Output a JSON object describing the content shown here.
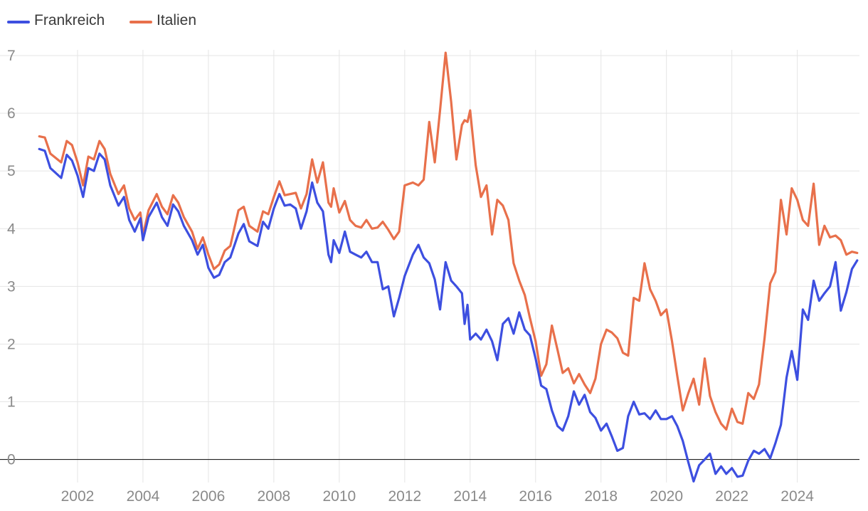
{
  "chart_data": {
    "type": "line",
    "title": "",
    "xlabel": "",
    "ylabel": "",
    "xlim": [
      2000.5,
      2025.9
    ],
    "ylim": [
      -0.4,
      7.1
    ],
    "grid": true,
    "legend_position": "top-left",
    "x_ticks": [
      2002,
      2004,
      2006,
      2008,
      2010,
      2012,
      2014,
      2016,
      2018,
      2020,
      2022,
      2024
    ],
    "x_tick_labels": [
      "2002",
      "2004",
      "2006",
      "2008",
      "2010",
      "2012",
      "2014",
      "2016",
      "2018",
      "2020",
      "2022",
      "2024"
    ],
    "y_ticks": [
      0,
      1,
      2,
      3,
      4,
      5,
      6,
      7
    ],
    "y_tick_labels": [
      "0",
      "1",
      "2",
      "3",
      "4",
      "5",
      "6",
      "7"
    ],
    "series": [
      {
        "name": "Frankreich",
        "color": "#3d4fe0",
        "points": [
          [
            2000.83,
            5.38
          ],
          [
            2001.0,
            5.35
          ],
          [
            2001.17,
            5.05
          ],
          [
            2001.5,
            4.88
          ],
          [
            2001.67,
            5.28
          ],
          [
            2001.83,
            5.18
          ],
          [
            2002.0,
            4.92
          ],
          [
            2002.17,
            4.55
          ],
          [
            2002.33,
            5.05
          ],
          [
            2002.5,
            5.0
          ],
          [
            2002.67,
            5.3
          ],
          [
            2002.83,
            5.2
          ],
          [
            2003.0,
            4.75
          ],
          [
            2003.25,
            4.4
          ],
          [
            2003.42,
            4.55
          ],
          [
            2003.58,
            4.15
          ],
          [
            2003.75,
            3.95
          ],
          [
            2003.92,
            4.18
          ],
          [
            2004.0,
            3.8
          ],
          [
            2004.17,
            4.2
          ],
          [
            2004.42,
            4.45
          ],
          [
            2004.58,
            4.2
          ],
          [
            2004.75,
            4.05
          ],
          [
            2004.92,
            4.42
          ],
          [
            2005.08,
            4.3
          ],
          [
            2005.25,
            4.05
          ],
          [
            2005.5,
            3.8
          ],
          [
            2005.67,
            3.55
          ],
          [
            2005.83,
            3.72
          ],
          [
            2006.0,
            3.32
          ],
          [
            2006.17,
            3.15
          ],
          [
            2006.33,
            3.2
          ],
          [
            2006.5,
            3.42
          ],
          [
            2006.67,
            3.5
          ],
          [
            2006.92,
            3.92
          ],
          [
            2007.08,
            4.08
          ],
          [
            2007.25,
            3.78
          ],
          [
            2007.5,
            3.7
          ],
          [
            2007.67,
            4.12
          ],
          [
            2007.83,
            4.0
          ],
          [
            2008.0,
            4.35
          ],
          [
            2008.17,
            4.6
          ],
          [
            2008.33,
            4.4
          ],
          [
            2008.5,
            4.42
          ],
          [
            2008.67,
            4.35
          ],
          [
            2008.83,
            4.0
          ],
          [
            2009.0,
            4.3
          ],
          [
            2009.17,
            4.8
          ],
          [
            2009.33,
            4.45
          ],
          [
            2009.5,
            4.3
          ],
          [
            2009.67,
            3.55
          ],
          [
            2009.75,
            3.42
          ],
          [
            2009.83,
            3.8
          ],
          [
            2010.0,
            3.58
          ],
          [
            2010.17,
            3.95
          ],
          [
            2010.33,
            3.6
          ],
          [
            2010.5,
            3.55
          ],
          [
            2010.67,
            3.5
          ],
          [
            2010.83,
            3.6
          ],
          [
            2011.0,
            3.42
          ],
          [
            2011.17,
            3.42
          ],
          [
            2011.33,
            2.95
          ],
          [
            2011.5,
            3.0
          ],
          [
            2011.67,
            2.48
          ],
          [
            2011.83,
            2.8
          ],
          [
            2012.0,
            3.18
          ],
          [
            2012.25,
            3.55
          ],
          [
            2012.42,
            3.72
          ],
          [
            2012.58,
            3.5
          ],
          [
            2012.75,
            3.4
          ],
          [
            2012.92,
            3.12
          ],
          [
            2013.08,
            2.6
          ],
          [
            2013.25,
            3.42
          ],
          [
            2013.42,
            3.1
          ],
          [
            2013.58,
            3.0
          ],
          [
            2013.75,
            2.88
          ],
          [
            2013.83,
            2.35
          ],
          [
            2013.92,
            2.68
          ],
          [
            2014.0,
            2.08
          ],
          [
            2014.17,
            2.18
          ],
          [
            2014.33,
            2.08
          ],
          [
            2014.5,
            2.25
          ],
          [
            2014.67,
            2.05
          ],
          [
            2014.83,
            1.72
          ],
          [
            2015.0,
            2.35
          ],
          [
            2015.17,
            2.45
          ],
          [
            2015.33,
            2.18
          ],
          [
            2015.5,
            2.55
          ],
          [
            2015.67,
            2.25
          ],
          [
            2015.83,
            2.15
          ],
          [
            2016.0,
            1.75
          ],
          [
            2016.17,
            1.28
          ],
          [
            2016.33,
            1.22
          ],
          [
            2016.5,
            0.85
          ],
          [
            2016.67,
            0.58
          ],
          [
            2016.83,
            0.5
          ],
          [
            2017.0,
            0.75
          ],
          [
            2017.17,
            1.18
          ],
          [
            2017.33,
            0.95
          ],
          [
            2017.5,
            1.12
          ],
          [
            2017.67,
            0.82
          ],
          [
            2017.83,
            0.72
          ],
          [
            2018.0,
            0.5
          ],
          [
            2018.17,
            0.62
          ],
          [
            2018.33,
            0.4
          ],
          [
            2018.5,
            0.15
          ],
          [
            2018.67,
            0.2
          ],
          [
            2018.83,
            0.75
          ],
          [
            2019.0,
            1.0
          ],
          [
            2019.17,
            0.78
          ],
          [
            2019.33,
            0.8
          ],
          [
            2019.5,
            0.7
          ],
          [
            2019.67,
            0.85
          ],
          [
            2019.83,
            0.7
          ],
          [
            2020.0,
            0.7
          ],
          [
            2020.17,
            0.75
          ],
          [
            2020.33,
            0.58
          ],
          [
            2020.5,
            0.32
          ],
          [
            2020.67,
            -0.05
          ],
          [
            2020.83,
            -0.38
          ],
          [
            2021.0,
            -0.1
          ],
          [
            2021.17,
            0.0
          ],
          [
            2021.33,
            0.1
          ],
          [
            2021.5,
            -0.25
          ],
          [
            2021.67,
            -0.12
          ],
          [
            2021.83,
            -0.25
          ],
          [
            2022.0,
            -0.15
          ],
          [
            2022.17,
            -0.3
          ],
          [
            2022.33,
            -0.28
          ],
          [
            2022.5,
            -0.02
          ],
          [
            2022.67,
            0.15
          ],
          [
            2022.83,
            0.1
          ],
          [
            2023.0,
            0.18
          ],
          [
            2023.17,
            0.02
          ],
          [
            2023.33,
            0.28
          ],
          [
            2023.5,
            0.6
          ],
          [
            2023.67,
            1.42
          ],
          [
            2023.83,
            1.88
          ],
          [
            2024.0,
            1.38
          ],
          [
            2024.17,
            2.6
          ],
          [
            2024.33,
            2.42
          ],
          [
            2024.5,
            3.1
          ],
          [
            2024.67,
            2.75
          ],
          [
            2024.83,
            2.88
          ],
          [
            2025.0,
            3.0
          ],
          [
            2025.17,
            3.42
          ],
          [
            2025.33,
            2.58
          ],
          [
            2025.5,
            2.9
          ],
          [
            2025.67,
            3.3
          ],
          [
            2025.83,
            3.45
          ]
        ]
      },
      {
        "name": "Italien",
        "color": "#e8704b",
        "points": [
          [
            2000.83,
            5.6
          ],
          [
            2001.0,
            5.58
          ],
          [
            2001.17,
            5.3
          ],
          [
            2001.5,
            5.15
          ],
          [
            2001.67,
            5.52
          ],
          [
            2001.83,
            5.45
          ],
          [
            2002.0,
            5.15
          ],
          [
            2002.17,
            4.75
          ],
          [
            2002.33,
            5.25
          ],
          [
            2002.5,
            5.2
          ],
          [
            2002.67,
            5.52
          ],
          [
            2002.83,
            5.38
          ],
          [
            2003.0,
            4.95
          ],
          [
            2003.25,
            4.6
          ],
          [
            2003.42,
            4.75
          ],
          [
            2003.58,
            4.35
          ],
          [
            2003.75,
            4.15
          ],
          [
            2003.92,
            4.28
          ],
          [
            2004.0,
            3.88
          ],
          [
            2004.17,
            4.32
          ],
          [
            2004.42,
            4.6
          ],
          [
            2004.58,
            4.38
          ],
          [
            2004.75,
            4.25
          ],
          [
            2004.92,
            4.58
          ],
          [
            2005.08,
            4.45
          ],
          [
            2005.25,
            4.2
          ],
          [
            2005.5,
            3.95
          ],
          [
            2005.67,
            3.65
          ],
          [
            2005.83,
            3.85
          ],
          [
            2006.0,
            3.55
          ],
          [
            2006.17,
            3.3
          ],
          [
            2006.33,
            3.38
          ],
          [
            2006.5,
            3.62
          ],
          [
            2006.67,
            3.7
          ],
          [
            2006.92,
            4.32
          ],
          [
            2007.08,
            4.38
          ],
          [
            2007.25,
            4.05
          ],
          [
            2007.5,
            3.95
          ],
          [
            2007.67,
            4.3
          ],
          [
            2007.83,
            4.25
          ],
          [
            2008.0,
            4.55
          ],
          [
            2008.17,
            4.82
          ],
          [
            2008.33,
            4.58
          ],
          [
            2008.5,
            4.6
          ],
          [
            2008.67,
            4.62
          ],
          [
            2008.83,
            4.35
          ],
          [
            2009.0,
            4.6
          ],
          [
            2009.17,
            5.2
          ],
          [
            2009.33,
            4.8
          ],
          [
            2009.5,
            5.15
          ],
          [
            2009.67,
            4.45
          ],
          [
            2009.75,
            4.38
          ],
          [
            2009.83,
            4.7
          ],
          [
            2010.0,
            4.28
          ],
          [
            2010.17,
            4.48
          ],
          [
            2010.33,
            4.15
          ],
          [
            2010.5,
            4.05
          ],
          [
            2010.67,
            4.02
          ],
          [
            2010.83,
            4.15
          ],
          [
            2011.0,
            4.0
          ],
          [
            2011.17,
            4.02
          ],
          [
            2011.33,
            4.12
          ],
          [
            2011.5,
            3.98
          ],
          [
            2011.67,
            3.82
          ],
          [
            2011.83,
            3.95
          ],
          [
            2012.0,
            4.75
          ],
          [
            2012.25,
            4.8
          ],
          [
            2012.42,
            4.75
          ],
          [
            2012.58,
            4.85
          ],
          [
            2012.75,
            5.85
          ],
          [
            2012.92,
            5.15
          ],
          [
            2013.08,
            6.05
          ],
          [
            2013.25,
            7.05
          ],
          [
            2013.42,
            6.2
          ],
          [
            2013.58,
            5.2
          ],
          [
            2013.75,
            5.8
          ],
          [
            2013.83,
            5.88
          ],
          [
            2013.92,
            5.85
          ],
          [
            2014.0,
            6.05
          ],
          [
            2014.17,
            5.1
          ],
          [
            2014.33,
            4.55
          ],
          [
            2014.5,
            4.75
          ],
          [
            2014.67,
            3.9
          ],
          [
            2014.83,
            4.5
          ],
          [
            2015.0,
            4.4
          ],
          [
            2015.17,
            4.15
          ],
          [
            2015.33,
            3.4
          ],
          [
            2015.5,
            3.1
          ],
          [
            2015.67,
            2.85
          ],
          [
            2015.83,
            2.45
          ],
          [
            2016.0,
            2.05
          ],
          [
            2016.17,
            1.45
          ],
          [
            2016.33,
            1.65
          ],
          [
            2016.5,
            2.32
          ],
          [
            2016.67,
            1.9
          ],
          [
            2016.83,
            1.5
          ],
          [
            2017.0,
            1.58
          ],
          [
            2017.17,
            1.32
          ],
          [
            2017.33,
            1.48
          ],
          [
            2017.5,
            1.3
          ],
          [
            2017.67,
            1.15
          ],
          [
            2017.83,
            1.4
          ],
          [
            2018.0,
            2.0
          ],
          [
            2018.17,
            2.25
          ],
          [
            2018.33,
            2.2
          ],
          [
            2018.5,
            2.1
          ],
          [
            2018.67,
            1.85
          ],
          [
            2018.83,
            1.8
          ],
          [
            2019.0,
            2.8
          ],
          [
            2019.17,
            2.75
          ],
          [
            2019.33,
            3.4
          ],
          [
            2019.5,
            2.95
          ],
          [
            2019.67,
            2.75
          ],
          [
            2019.83,
            2.5
          ],
          [
            2020.0,
            2.6
          ],
          [
            2020.17,
            2.05
          ],
          [
            2020.33,
            1.45
          ],
          [
            2020.5,
            0.85
          ],
          [
            2020.67,
            1.15
          ],
          [
            2020.83,
            1.4
          ],
          [
            2021.0,
            0.95
          ],
          [
            2021.17,
            1.75
          ],
          [
            2021.33,
            1.1
          ],
          [
            2021.5,
            0.82
          ],
          [
            2021.67,
            0.62
          ],
          [
            2021.83,
            0.52
          ],
          [
            2022.0,
            0.88
          ],
          [
            2022.17,
            0.65
          ],
          [
            2022.33,
            0.62
          ],
          [
            2022.5,
            1.15
          ],
          [
            2022.67,
            1.05
          ],
          [
            2022.83,
            1.3
          ],
          [
            2023.0,
            2.1
          ],
          [
            2023.17,
            3.05
          ],
          [
            2023.33,
            3.25
          ],
          [
            2023.5,
            4.5
          ],
          [
            2023.67,
            3.9
          ],
          [
            2023.83,
            4.7
          ],
          [
            2024.0,
            4.5
          ],
          [
            2024.17,
            4.15
          ],
          [
            2024.33,
            4.05
          ],
          [
            2024.5,
            4.78
          ],
          [
            2024.67,
            3.72
          ],
          [
            2024.83,
            4.05
          ],
          [
            2025.0,
            3.85
          ],
          [
            2025.17,
            3.88
          ],
          [
            2025.33,
            3.8
          ],
          [
            2025.5,
            3.55
          ],
          [
            2025.67,
            3.6
          ],
          [
            2025.83,
            3.58
          ]
        ]
      }
    ]
  }
}
